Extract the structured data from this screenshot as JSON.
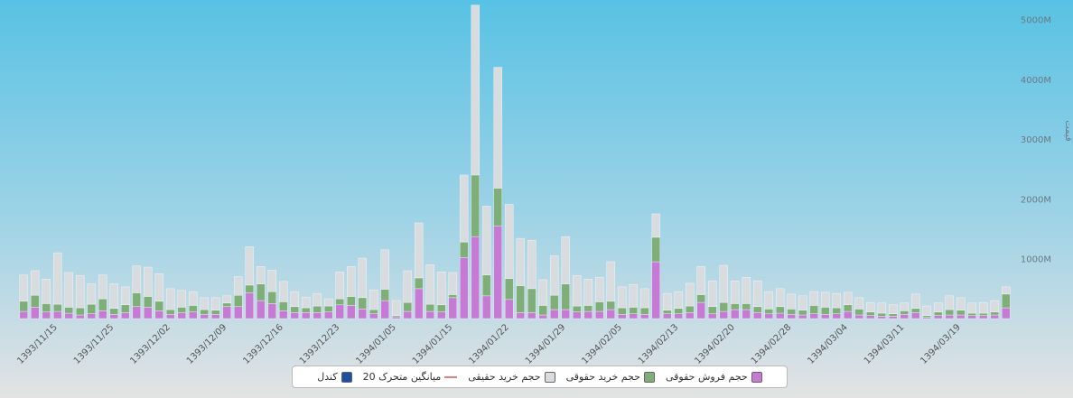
{
  "chart_data": {
    "type": "stacked_bar",
    "y_axis_label": "قیمت",
    "categories": [
      null,
      null,
      null,
      "1393/11/15",
      null,
      null,
      null,
      null,
      "1393/11/25",
      null,
      null,
      null,
      null,
      "1393/12/02",
      null,
      null,
      null,
      null,
      "1393/12/09",
      null,
      null,
      null,
      null,
      "1393/12/16",
      null,
      null,
      null,
      null,
      "1393/12/23",
      null,
      null,
      null,
      null,
      "1394/01/05",
      null,
      null,
      null,
      null,
      "1394/01/15",
      null,
      null,
      null,
      null,
      "1394/01/22",
      null,
      null,
      null,
      null,
      "1394/01/29",
      null,
      null,
      null,
      null,
      "1394/02/05",
      null,
      null,
      null,
      null,
      "1394/02/13",
      null,
      null,
      null,
      null,
      "1394/02/20",
      null,
      null,
      null,
      null,
      "1394/02/28",
      null,
      null,
      null,
      null,
      "1394/03/04",
      null,
      null,
      null,
      null,
      "1394/03/11",
      null,
      null,
      null,
      null,
      "1394/03/19",
      null,
      null,
      null,
      null
    ],
    "series": [
      {
        "name": "حجم فروش حقوقی",
        "color": "#c67ad4",
        "values": [
          120,
          190,
          110,
          120,
          90,
          60,
          80,
          130,
          70,
          100,
          200,
          190,
          130,
          70,
          100,
          110,
          70,
          70,
          200,
          200,
          430,
          300,
          250,
          130,
          100,
          100,
          100,
          110,
          230,
          220,
          160,
          80,
          300,
          30,
          120,
          500,
          120,
          110,
          350,
          1020,
          1370,
          380,
          1550,
          320,
          100,
          100,
          60,
          150,
          150,
          110,
          120,
          120,
          150,
          70,
          80,
          70,
          950,
          80,
          80,
          100,
          270,
          80,
          120,
          150,
          150,
          100,
          80,
          90,
          70,
          60,
          80,
          70,
          80,
          120,
          60,
          50,
          40,
          40,
          70,
          100,
          20,
          50,
          60,
          60,
          50,
          50,
          60,
          180
        ]
      },
      {
        "name": "حجم خرید حقوقی",
        "color": "#7fae78",
        "values": [
          170,
          200,
          140,
          120,
          100,
          120,
          160,
          200,
          100,
          130,
          230,
          180,
          160,
          80,
          90,
          110,
          80,
          70,
          60,
          190,
          130,
          280,
          200,
          150,
          100,
          80,
          110,
          100,
          100,
          150,
          190,
          70,
          190,
          20,
          150,
          180,
          120,
          120,
          50,
          260,
          1030,
          350,
          630,
          350,
          450,
          400,
          160,
          240,
          430,
          100,
          100,
          160,
          140,
          110,
          110,
          110,
          410,
          60,
          90,
          110,
          130,
          120,
          150,
          100,
          100,
          100,
          80,
          110,
          90,
          80,
          140,
          120,
          100,
          110,
          100,
          60,
          50,
          40,
          60,
          70,
          30,
          60,
          90,
          80,
          40,
          40,
          50,
          230
        ]
      },
      {
        "name": "حجم خرید حقیقی",
        "color": "#d8dcdf",
        "values": [
          440,
          410,
          410,
          860,
          580,
          540,
          340,
          400,
          410,
          300,
          450,
          490,
          460,
          350,
          280,
          230,
          200,
          210,
          120,
          310,
          640,
          290,
          360,
          340,
          250,
          180,
          210,
          120,
          450,
          500,
          660,
          330,
          660,
          250,
          530,
          920,
          660,
          550,
          370,
          1120,
          2840,
          1150,
          2020,
          1240,
          790,
          810,
          430,
          660,
          790,
          510,
          440,
          410,
          660,
          350,
          380,
          320,
          390,
          280,
          280,
          380,
          470,
          430,
          620,
          380,
          440,
          430,
          290,
          300,
          250,
          240,
          230,
          250,
          240,
          210,
          190,
          160,
          170,
          150,
          130,
          240,
          160,
          150,
          230,
          210,
          170,
          180,
          190,
          120
        ]
      }
    ],
    "other_legend": [
      {
        "name": "میانگین متحرک 20",
        "color": "#e57f7f"
      },
      {
        "name": "کندل",
        "color": "#1f4fa3"
      }
    ],
    "ylim": [
      0,
      5250
    ],
    "yticks": [
      {
        "value": 1000,
        "label": "1000M"
      },
      {
        "value": 2000,
        "label": "2000M"
      },
      {
        "value": 3000,
        "label": "3000M"
      },
      {
        "value": 4000,
        "label": "4000M"
      },
      {
        "value": 5000,
        "label": "5000M"
      }
    ],
    "grid": false
  }
}
